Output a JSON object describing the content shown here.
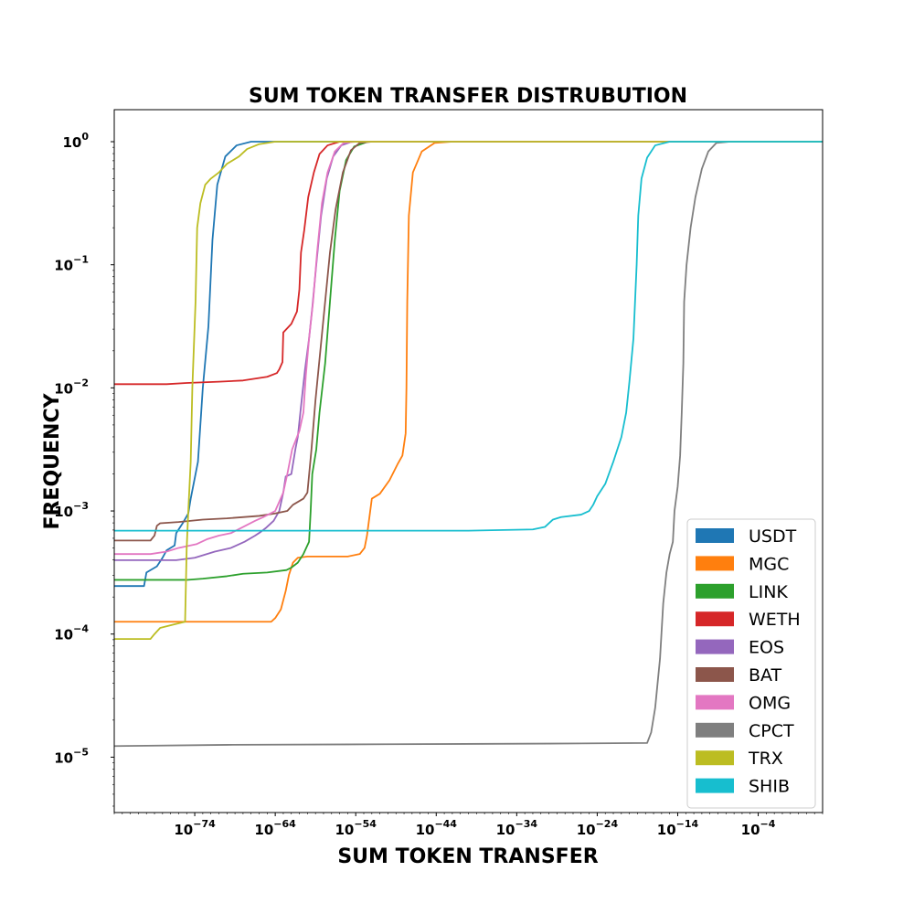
{
  "chart_data": {
    "type": "line",
    "title": "SUM TOKEN TRANSFER DISTRUBUTION",
    "xlabel": "SUM TOKEN TRANSFER",
    "ylabel": "FREQUENCY",
    "x_scale": "log",
    "y_scale": "log",
    "xlim_log10": [
      -84,
      4
    ],
    "ylim_log10": [
      -5.45,
      0.26
    ],
    "x_ticks_log10": [
      -74,
      -64,
      -54,
      -44,
      -34,
      -24,
      -14,
      -4
    ],
    "y_ticks_log10": [
      0,
      -1,
      -2,
      -3,
      -4,
      -5
    ],
    "legend_position": "lower-right",
    "grid": false,
    "series": [
      {
        "name": "USDT",
        "color": "#1f77b4",
        "points": [
          [
            -84,
            -3.61
          ],
          [
            -80.3,
            -3.61
          ],
          [
            -80.0,
            -3.5
          ],
          [
            -78.7,
            -3.45
          ],
          [
            -78.0,
            -3.38
          ],
          [
            -77.5,
            -3.32
          ],
          [
            -76.5,
            -3.28
          ],
          [
            -76.3,
            -3.18
          ],
          [
            -75.5,
            -3.1
          ],
          [
            -74.8,
            -3.02
          ],
          [
            -74.5,
            -2.9
          ],
          [
            -73.6,
            -2.6
          ],
          [
            -73.0,
            -2.0
          ],
          [
            -72.3,
            -1.5
          ],
          [
            -71.8,
            -0.8
          ],
          [
            -71.2,
            -0.35
          ],
          [
            -70.2,
            -0.12
          ],
          [
            -68.8,
            -0.03
          ],
          [
            -67.0,
            0.0
          ],
          [
            -62,
            0.0
          ],
          [
            -50,
            0.0
          ],
          [
            -30,
            0.0
          ],
          [
            4,
            0.0
          ]
        ]
      },
      {
        "name": "MGC",
        "color": "#ff7f0e",
        "points": [
          [
            -84,
            -3.9
          ],
          [
            -64.5,
            -3.9
          ],
          [
            -64.0,
            -3.87
          ],
          [
            -63.3,
            -3.8
          ],
          [
            -62.7,
            -3.65
          ],
          [
            -62.3,
            -3.52
          ],
          [
            -61.8,
            -3.42
          ],
          [
            -61.2,
            -3.38
          ],
          [
            -60,
            -3.37
          ],
          [
            -55,
            -3.37
          ],
          [
            -53.5,
            -3.35
          ],
          [
            -52.9,
            -3.3
          ],
          [
            -52.6,
            -3.2
          ],
          [
            -52.3,
            -3.05
          ],
          [
            -52.0,
            -2.9
          ],
          [
            -51.0,
            -2.86
          ],
          [
            -49.8,
            -2.75
          ],
          [
            -48.8,
            -2.62
          ],
          [
            -48.2,
            -2.55
          ],
          [
            -47.8,
            -2.37
          ],
          [
            -47.7,
            -2.0
          ],
          [
            -47.6,
            -1.3
          ],
          [
            -47.4,
            -0.6
          ],
          [
            -46.9,
            -0.25
          ],
          [
            -45.8,
            -0.08
          ],
          [
            -44.2,
            -0.01
          ],
          [
            -42,
            0.0
          ],
          [
            -30,
            0.0
          ],
          [
            4,
            0.0
          ]
        ]
      },
      {
        "name": "LINK",
        "color": "#2ca02c",
        "points": [
          [
            -84,
            -3.56
          ],
          [
            -75,
            -3.56
          ],
          [
            -73,
            -3.55
          ],
          [
            -70,
            -3.53
          ],
          [
            -68,
            -3.51
          ],
          [
            -65,
            -3.5
          ],
          [
            -62.6,
            -3.48
          ],
          [
            -62,
            -3.46
          ],
          [
            -61.2,
            -3.42
          ],
          [
            -60.5,
            -3.35
          ],
          [
            -59.8,
            -3.25
          ],
          [
            -59.6,
            -3.0
          ],
          [
            -59.4,
            -2.7
          ],
          [
            -58.9,
            -2.5
          ],
          [
            -58.5,
            -2.2
          ],
          [
            -57.8,
            -1.8
          ],
          [
            -57.2,
            -1.3
          ],
          [
            -56.6,
            -0.8
          ],
          [
            -56.0,
            -0.4
          ],
          [
            -55.2,
            -0.15
          ],
          [
            -54.2,
            -0.04
          ],
          [
            -52.5,
            0.0
          ],
          [
            -40,
            0.0
          ],
          [
            4,
            0.0
          ]
        ]
      },
      {
        "name": "WETH",
        "color": "#d62728",
        "points": [
          [
            -84,
            -1.97
          ],
          [
            -77.5,
            -1.97
          ],
          [
            -75,
            -1.96
          ],
          [
            -71,
            -1.95
          ],
          [
            -68,
            -1.94
          ],
          [
            -65,
            -1.91
          ],
          [
            -63.8,
            -1.88
          ],
          [
            -63.5,
            -1.85
          ],
          [
            -63.1,
            -1.79
          ],
          [
            -63.0,
            -1.55
          ],
          [
            -62.0,
            -1.48
          ],
          [
            -61.3,
            -1.38
          ],
          [
            -61.0,
            -1.2
          ],
          [
            -60.8,
            -0.9
          ],
          [
            -60.4,
            -0.72
          ],
          [
            -59.9,
            -0.45
          ],
          [
            -59.2,
            -0.25
          ],
          [
            -58.5,
            -0.1
          ],
          [
            -57.5,
            -0.03
          ],
          [
            -56,
            0.0
          ],
          [
            -50,
            0.0
          ],
          [
            4,
            0.0
          ]
        ]
      },
      {
        "name": "EOS",
        "color": "#9467bd",
        "points": [
          [
            -84,
            -3.4
          ],
          [
            -76.3,
            -3.4
          ],
          [
            -74,
            -3.38
          ],
          [
            -71.5,
            -3.33
          ],
          [
            -69.5,
            -3.3
          ],
          [
            -67.8,
            -3.25
          ],
          [
            -66.5,
            -3.2
          ],
          [
            -65.8,
            -3.17
          ],
          [
            -65.2,
            -3.14
          ],
          [
            -64.2,
            -3.08
          ],
          [
            -63.5,
            -3.0
          ],
          [
            -63.0,
            -2.85
          ],
          [
            -62.7,
            -2.72
          ],
          [
            -62.0,
            -2.7
          ],
          [
            -61.5,
            -2.5
          ],
          [
            -61.2,
            -2.4
          ],
          [
            -60.8,
            -2.15
          ],
          [
            -60.3,
            -1.85
          ],
          [
            -59.8,
            -1.6
          ],
          [
            -59.4,
            -1.35
          ],
          [
            -58.9,
            -1.0
          ],
          [
            -58.3,
            -0.6
          ],
          [
            -57.6,
            -0.3
          ],
          [
            -56.8,
            -0.12
          ],
          [
            -55.8,
            -0.03
          ],
          [
            -54.5,
            0.0
          ],
          [
            -45,
            0.0
          ],
          [
            4,
            0.0
          ]
        ]
      },
      {
        "name": "BAT",
        "color": "#8c564b",
        "points": [
          [
            -84,
            -3.24
          ],
          [
            -79.5,
            -3.24
          ],
          [
            -79.0,
            -3.2
          ],
          [
            -78.7,
            -3.12
          ],
          [
            -78.3,
            -3.1
          ],
          [
            -76,
            -3.09
          ],
          [
            -73,
            -3.07
          ],
          [
            -70,
            -3.06
          ],
          [
            -66,
            -3.04
          ],
          [
            -64,
            -3.02
          ],
          [
            -62.5,
            -3.0
          ],
          [
            -61.8,
            -2.95
          ],
          [
            -60.5,
            -2.9
          ],
          [
            -60.0,
            -2.85
          ],
          [
            -59.5,
            -2.5
          ],
          [
            -59.0,
            -2.1
          ],
          [
            -58.4,
            -1.7
          ],
          [
            -57.8,
            -1.3
          ],
          [
            -57.2,
            -0.9
          ],
          [
            -56.5,
            -0.55
          ],
          [
            -55.6,
            -0.25
          ],
          [
            -54.6,
            -0.07
          ],
          [
            -53.5,
            -0.01
          ],
          [
            -52,
            0.0
          ],
          [
            -40,
            0.0
          ],
          [
            4,
            0.0
          ]
        ]
      },
      {
        "name": "OMG",
        "color": "#e377c2",
        "points": [
          [
            -84,
            -3.35
          ],
          [
            -79.5,
            -3.35
          ],
          [
            -77.5,
            -3.33
          ],
          [
            -76,
            -3.3
          ],
          [
            -73.8,
            -3.27
          ],
          [
            -72.5,
            -3.23
          ],
          [
            -71,
            -3.2
          ],
          [
            -69.5,
            -3.18
          ],
          [
            -68,
            -3.13
          ],
          [
            -66.5,
            -3.08
          ],
          [
            -65.5,
            -3.05
          ],
          [
            -64.0,
            -3.0
          ],
          [
            -63.0,
            -2.85
          ],
          [
            -62.5,
            -2.7
          ],
          [
            -61.9,
            -2.5
          ],
          [
            -61.0,
            -2.35
          ],
          [
            -60.5,
            -2.2
          ],
          [
            -60.2,
            -1.9
          ],
          [
            -59.8,
            -1.6
          ],
          [
            -59.3,
            -1.3
          ],
          [
            -58.8,
            -0.9
          ],
          [
            -58.2,
            -0.5
          ],
          [
            -57.5,
            -0.25
          ],
          [
            -56.6,
            -0.08
          ],
          [
            -55.5,
            -0.01
          ],
          [
            -54,
            0.0
          ],
          [
            -45,
            0.0
          ],
          [
            4,
            0.0
          ]
        ]
      },
      {
        "name": "CPCT",
        "color": "#7f7f7f",
        "points": [
          [
            -84,
            -4.91
          ],
          [
            -70,
            -4.9
          ],
          [
            -50,
            -4.895
          ],
          [
            -30,
            -4.89
          ],
          [
            -17.8,
            -4.885
          ],
          [
            -17.3,
            -4.8
          ],
          [
            -16.8,
            -4.6
          ],
          [
            -16.2,
            -4.2
          ],
          [
            -15.8,
            -3.75
          ],
          [
            -15.4,
            -3.5
          ],
          [
            -15.0,
            -3.35
          ],
          [
            -14.6,
            -3.25
          ],
          [
            -14.4,
            -3.0
          ],
          [
            -14.0,
            -2.8
          ],
          [
            -13.7,
            -2.55
          ],
          [
            -13.5,
            -2.2
          ],
          [
            -13.3,
            -1.8
          ],
          [
            -13.2,
            -1.3
          ],
          [
            -12.9,
            -1.0
          ],
          [
            -12.4,
            -0.7
          ],
          [
            -11.8,
            -0.45
          ],
          [
            -11.0,
            -0.22
          ],
          [
            -10.2,
            -0.08
          ],
          [
            -9.2,
            -0.01
          ],
          [
            -7.5,
            0.0
          ],
          [
            0,
            0.0
          ],
          [
            4,
            0.0
          ]
        ]
      },
      {
        "name": "TRX",
        "color": "#bcbd22",
        "points": [
          [
            -84,
            -4.04
          ],
          [
            -79.5,
            -4.04
          ],
          [
            -79.0,
            -4.0
          ],
          [
            -78.3,
            -3.95
          ],
          [
            -76.5,
            -3.92
          ],
          [
            -75.2,
            -3.9
          ],
          [
            -75.0,
            -3.3
          ],
          [
            -74.8,
            -3.0
          ],
          [
            -74.5,
            -2.6
          ],
          [
            -74.3,
            -2.0
          ],
          [
            -73.9,
            -1.3
          ],
          [
            -73.7,
            -0.7
          ],
          [
            -73.3,
            -0.5
          ],
          [
            -72.7,
            -0.35
          ],
          [
            -72.0,
            -0.3
          ],
          [
            -71.0,
            -0.25
          ],
          [
            -70.0,
            -0.18
          ],
          [
            -68.5,
            -0.12
          ],
          [
            -67.5,
            -0.06
          ],
          [
            -66.0,
            -0.02
          ],
          [
            -64.0,
            0.0
          ],
          [
            -55,
            0.0
          ],
          [
            -40,
            0.0
          ],
          [
            4,
            0.0
          ]
        ]
      },
      {
        "name": "SHIB",
        "color": "#17becf",
        "points": [
          [
            -84,
            -3.16
          ],
          [
            -60,
            -3.16
          ],
          [
            -40,
            -3.16
          ],
          [
            -32,
            -3.15
          ],
          [
            -30.5,
            -3.13
          ],
          [
            -29.5,
            -3.07
          ],
          [
            -28.5,
            -3.05
          ],
          [
            -26,
            -3.03
          ],
          [
            -25,
            -3.0
          ],
          [
            -24.5,
            -2.95
          ],
          [
            -24.0,
            -2.88
          ],
          [
            -23.0,
            -2.78
          ],
          [
            -22.0,
            -2.6
          ],
          [
            -21.0,
            -2.4
          ],
          [
            -20.4,
            -2.2
          ],
          [
            -20.0,
            -1.95
          ],
          [
            -19.5,
            -1.6
          ],
          [
            -19.1,
            -1.0
          ],
          [
            -18.9,
            -0.6
          ],
          [
            -18.5,
            -0.3
          ],
          [
            -17.8,
            -0.13
          ],
          [
            -16.8,
            -0.03
          ],
          [
            -15.0,
            0.0
          ],
          [
            -5,
            0.0
          ],
          [
            4,
            0.0
          ]
        ]
      }
    ]
  }
}
